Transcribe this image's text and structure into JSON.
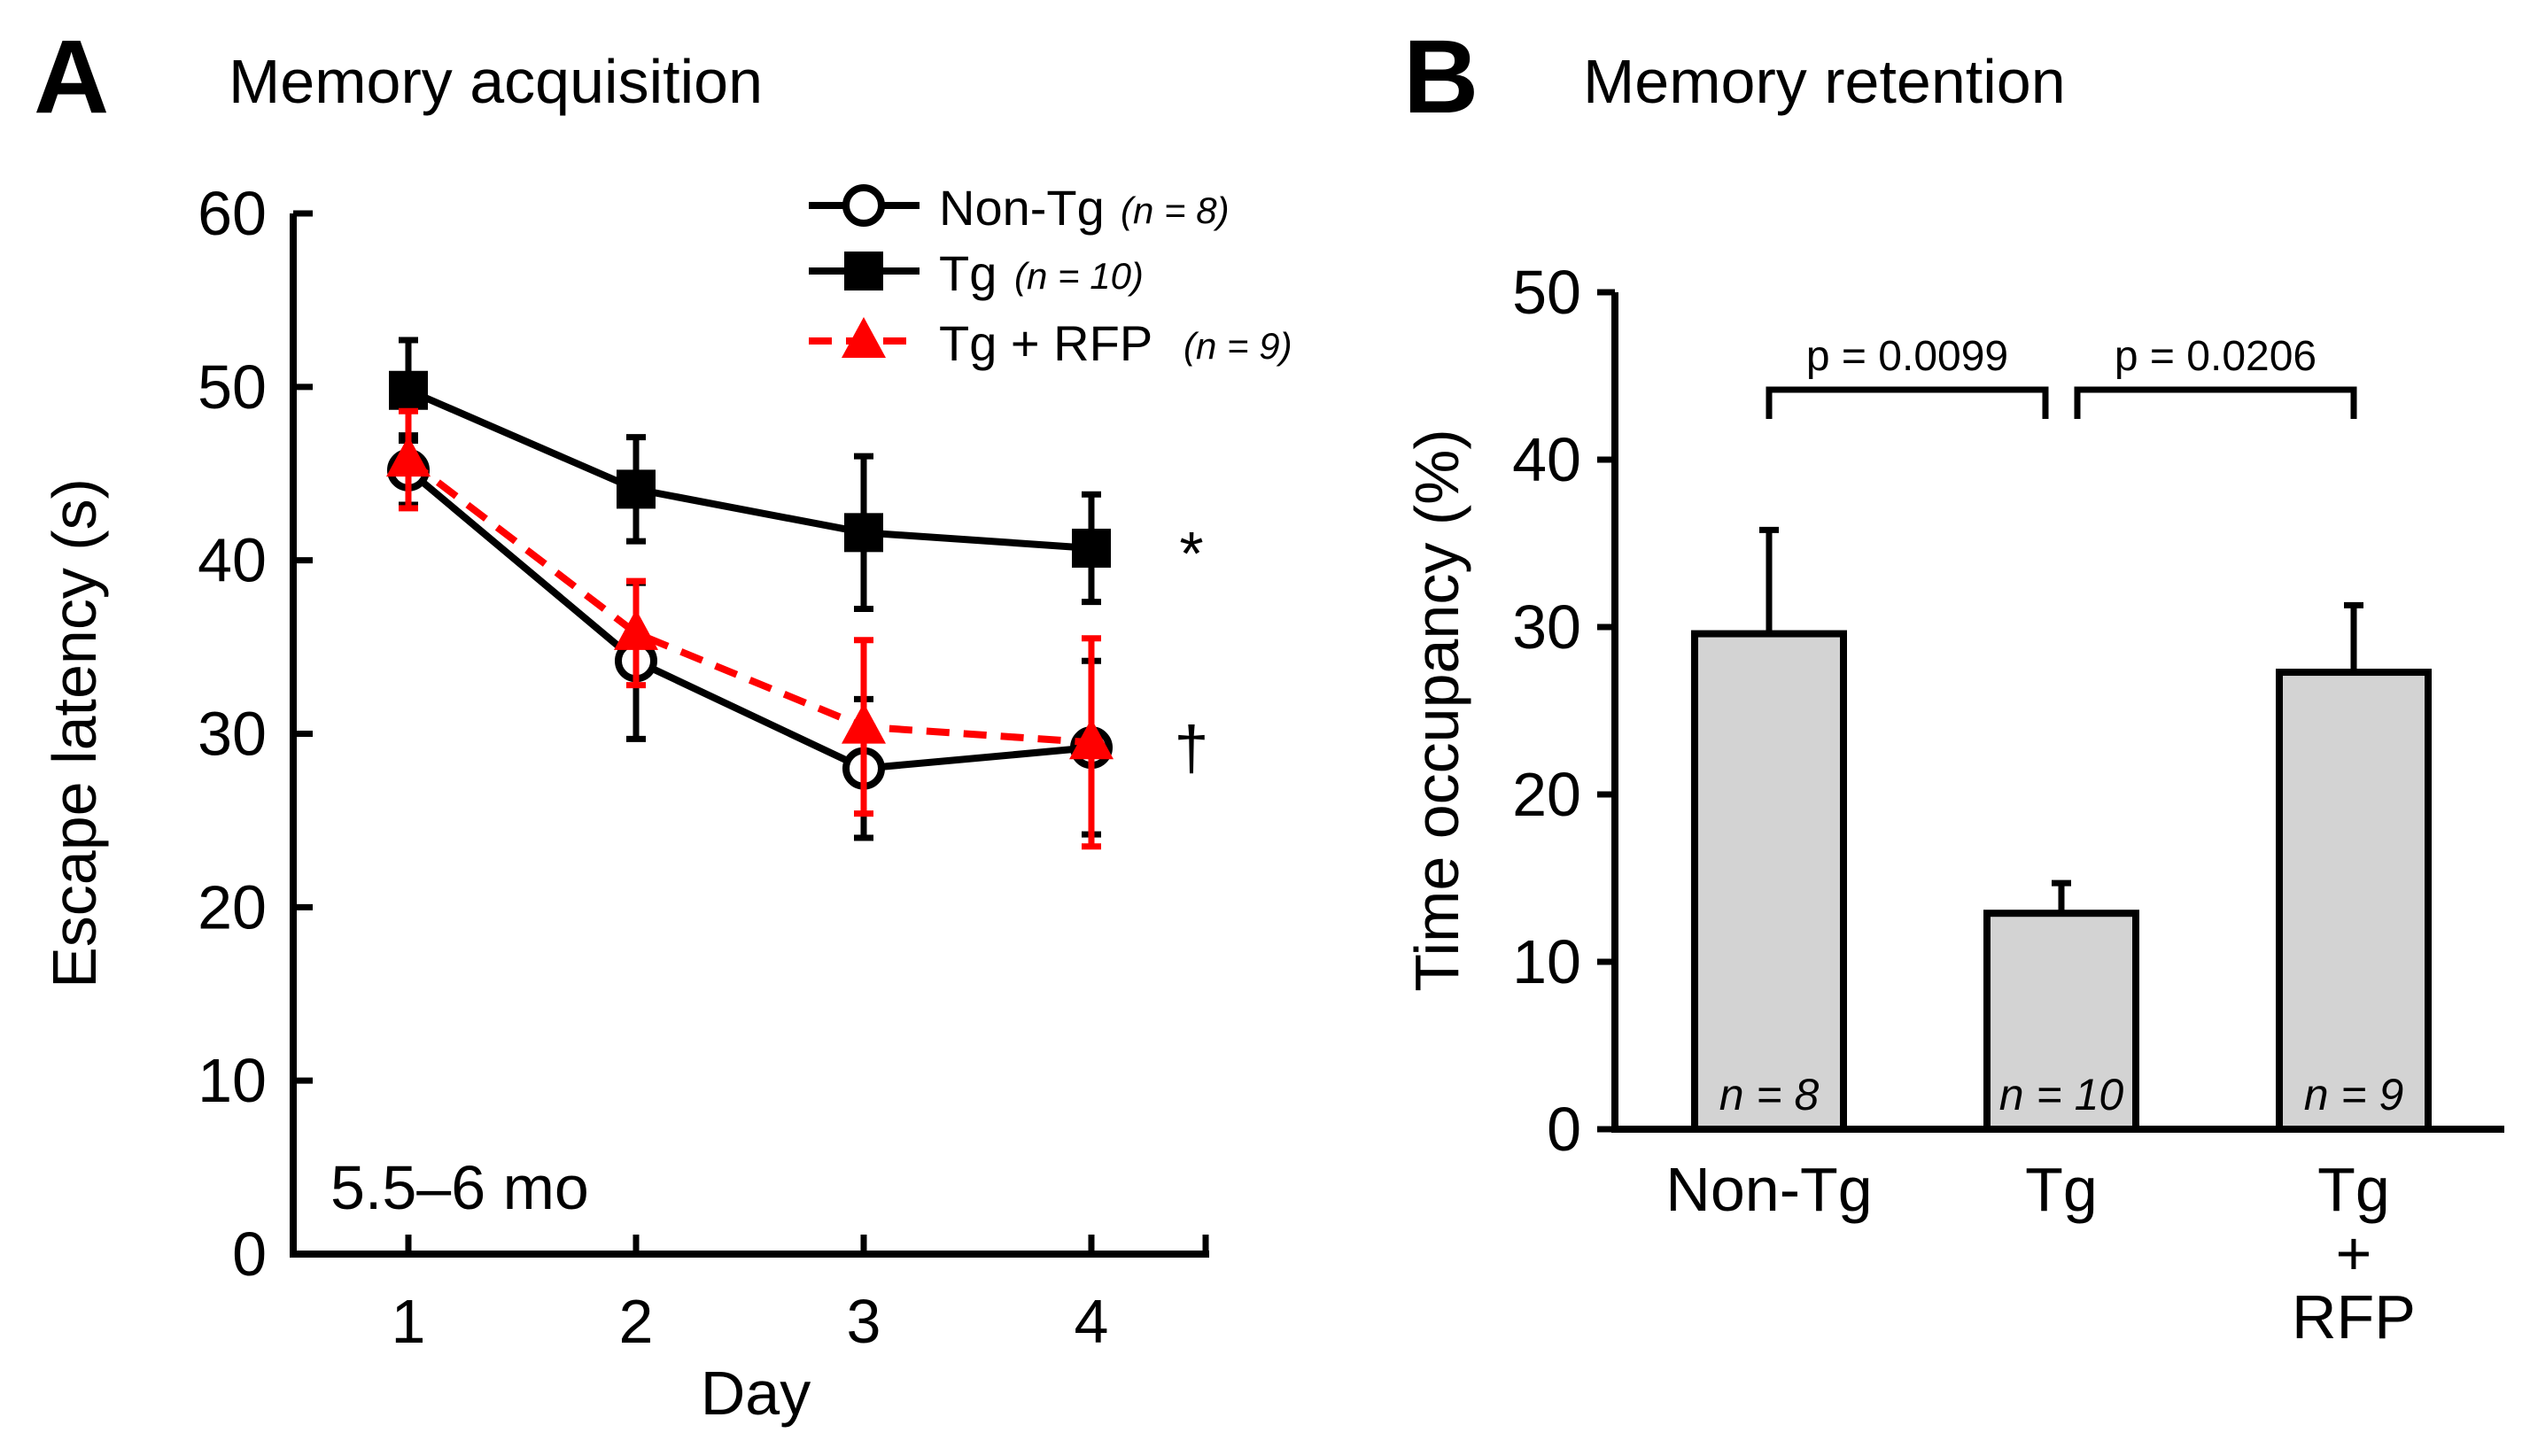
{
  "chart_data": [
    {
      "panel": "A",
      "type": "line",
      "title": "Memory acquisition",
      "xlabel": "Day",
      "ylabel": "Escape latency (s)",
      "x": [
        1,
        2,
        3,
        4
      ],
      "xticks": [
        "1",
        "2",
        "3",
        "4"
      ],
      "ylim": [
        0,
        60
      ],
      "yticks": [
        "0",
        "10",
        "20",
        "30",
        "40",
        "50",
        "60"
      ],
      "yticks_values": [
        0,
        10,
        20,
        30,
        40,
        50,
        60
      ],
      "annotation": "5.5–6 mo",
      "legend_position": "top-right",
      "series": [
        {
          "name": "Non-Tg",
          "n_label": "(n = 8)",
          "values": [
            45.2,
            34.2,
            28.0,
            29.2
          ],
          "errors": [
            2.0,
            4.5,
            4.0,
            5.0
          ],
          "color": "#000000",
          "marker": "open-circle",
          "line": "solid"
        },
        {
          "name": "Tg",
          "n_label": "(n = 10)",
          "values": [
            49.8,
            44.1,
            41.6,
            40.7
          ],
          "errors": [
            2.9,
            3.0,
            4.4,
            3.1
          ],
          "color": "#000000",
          "marker": "filled-square",
          "line": "solid"
        },
        {
          "name": "Tg + RFP",
          "n_label": "(n = 9)",
          "values": [
            45.8,
            35.8,
            30.4,
            29.5
          ],
          "errors": [
            2.8,
            3.0,
            5.0,
            6.0
          ],
          "color": "#ff0000",
          "marker": "filled-triangle",
          "line": "dashed"
        }
      ],
      "significance": [
        {
          "series": "Tg",
          "mark": "*"
        },
        {
          "series": "Tg + RFP",
          "mark": "†"
        }
      ]
    },
    {
      "panel": "B",
      "type": "bar",
      "title": "Memory retention",
      "xlabel": "",
      "ylabel": "Time occupancy (%)",
      "categories": [
        "Non-Tg",
        "Tg",
        "Tg + RFP"
      ],
      "category_lines": [
        [
          "Non-Tg"
        ],
        [
          "Tg"
        ],
        [
          "Tg",
          "+",
          "RFP"
        ]
      ],
      "values": [
        29.6,
        12.9,
        27.3
      ],
      "errors": [
        6.2,
        1.8,
        4.0
      ],
      "n_labels": [
        "n = 8",
        "n = 10",
        "n = 9"
      ],
      "ylim": [
        0,
        50
      ],
      "yticks": [
        "0",
        "10",
        "20",
        "30",
        "40",
        "50"
      ],
      "yticks_values": [
        0,
        10,
        20,
        30,
        40,
        50
      ],
      "bar_color": "#d3d3d3",
      "comparisons": [
        {
          "from": 0,
          "to": 1,
          "label": "p = 0.0099"
        },
        {
          "from": 1,
          "to": 2,
          "label": "p = 0.0206"
        }
      ]
    }
  ]
}
